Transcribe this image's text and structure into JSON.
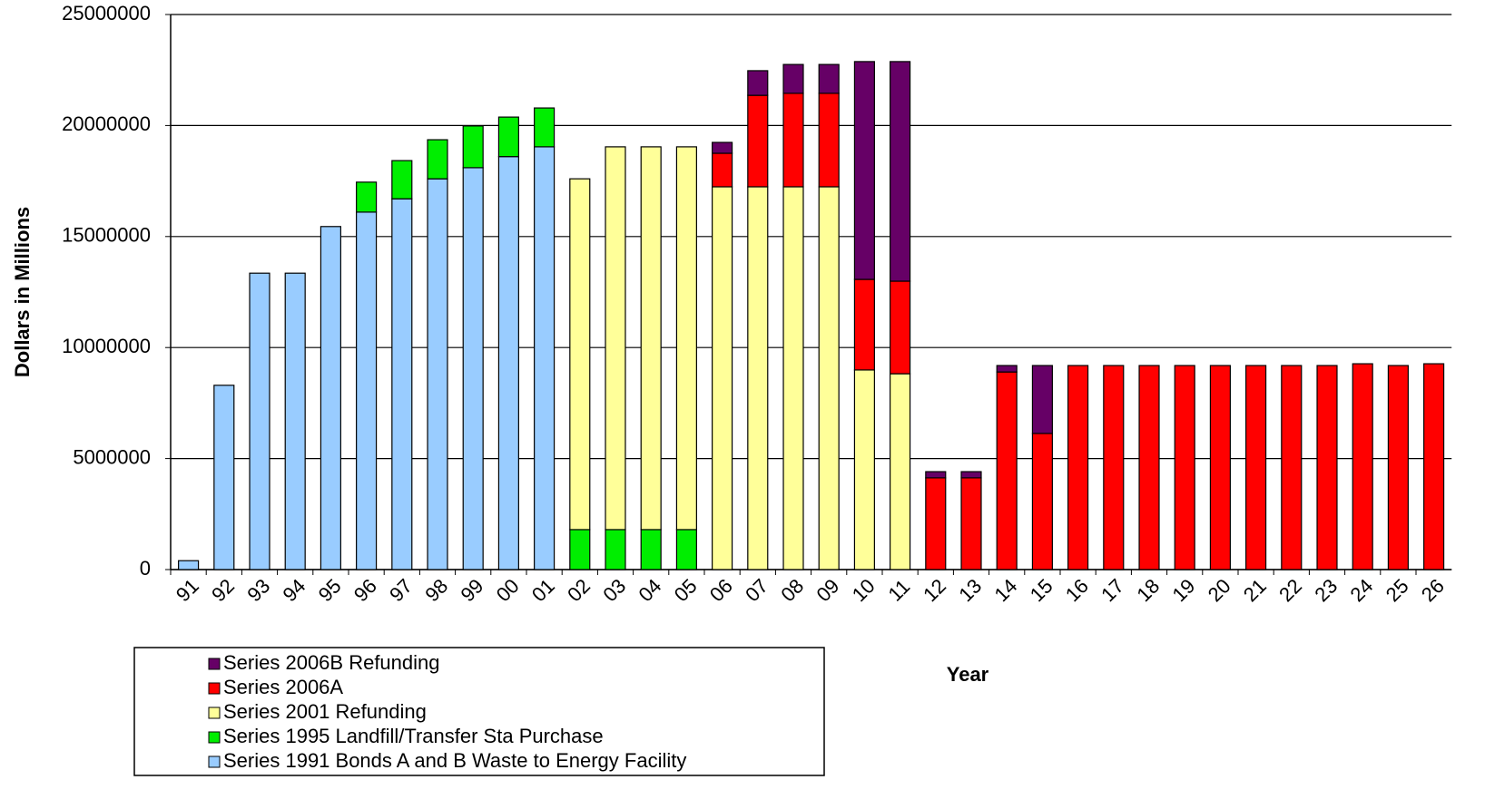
{
  "chart_data": {
    "type": "stacked_bar",
    "y_axis_label": "Dollars in Millions",
    "x_axis_label": "Year",
    "categories": [
      "91",
      "92",
      "93",
      "94",
      "95",
      "96",
      "97",
      "98",
      "99",
      "00",
      "01",
      "02",
      "03",
      "04",
      "05",
      "06",
      "07",
      "08",
      "09",
      "10",
      "11",
      "12",
      "13",
      "14",
      "15",
      "16",
      "17",
      "18",
      "19",
      "20",
      "21",
      "22",
      "23",
      "24",
      "25",
      "26"
    ],
    "series": [
      {
        "name": "Series 1991 Bonds A and B Waste to Energy Facility",
        "color": "#99ccff",
        "values": [
          400000,
          8300000,
          13350000,
          13350000,
          15450000,
          16100000,
          16700000,
          17600000,
          18100000,
          18600000,
          19040000,
          null,
          null,
          null,
          null,
          null,
          null,
          null,
          null,
          null,
          null,
          null,
          null,
          null,
          null,
          null,
          null,
          null,
          null,
          null,
          null,
          null,
          null,
          null,
          null,
          null
        ]
      },
      {
        "name": "Series 1995 Landfill/Transfer Sta Purchase",
        "color": "#00ee00",
        "values": [
          null,
          null,
          null,
          null,
          null,
          1350000,
          1720000,
          1760000,
          1880000,
          1780000,
          1750000,
          1800000,
          1800000,
          1800000,
          1800000,
          null,
          null,
          null,
          null,
          null,
          null,
          null,
          null,
          null,
          null,
          null,
          null,
          null,
          null,
          null,
          null,
          null,
          null,
          null,
          null,
          null
        ]
      },
      {
        "name": "Series 2001 Refunding",
        "color": "#ffff99",
        "values": [
          null,
          null,
          null,
          null,
          null,
          null,
          null,
          null,
          null,
          null,
          null,
          15800000,
          17240000,
          17240000,
          17240000,
          17240000,
          17240000,
          17240000,
          17240000,
          8990000,
          8820000,
          null,
          null,
          null,
          null,
          null,
          null,
          null,
          null,
          null,
          null,
          null,
          null,
          null,
          null,
          null
        ]
      },
      {
        "name": "Series 2006A",
        "color": "#ff0000",
        "values": [
          null,
          null,
          null,
          null,
          null,
          null,
          null,
          null,
          null,
          null,
          null,
          null,
          null,
          null,
          null,
          1510000,
          4120000,
          4210000,
          4210000,
          4080000,
          4170000,
          4130000,
          4130000,
          8900000,
          6130000,
          9190000,
          9190000,
          9190000,
          9190000,
          9190000,
          9190000,
          9190000,
          9190000,
          9270000,
          9190000,
          9270000
        ]
      },
      {
        "name": "Series 2006B Refunding",
        "color": "#660066",
        "values": [
          null,
          null,
          null,
          null,
          null,
          null,
          null,
          null,
          null,
          null,
          null,
          null,
          null,
          null,
          null,
          490000,
          1110000,
          1300000,
          1300000,
          9810000,
          9890000,
          280000,
          280000,
          290000,
          3060000,
          null,
          null,
          null,
          null,
          null,
          null,
          null,
          null,
          null,
          null,
          null
        ]
      }
    ],
    "ylim": [
      0,
      25000000
    ],
    "yticks": [
      0,
      5000000,
      10000000,
      15000000,
      20000000,
      25000000
    ],
    "grid": true
  }
}
